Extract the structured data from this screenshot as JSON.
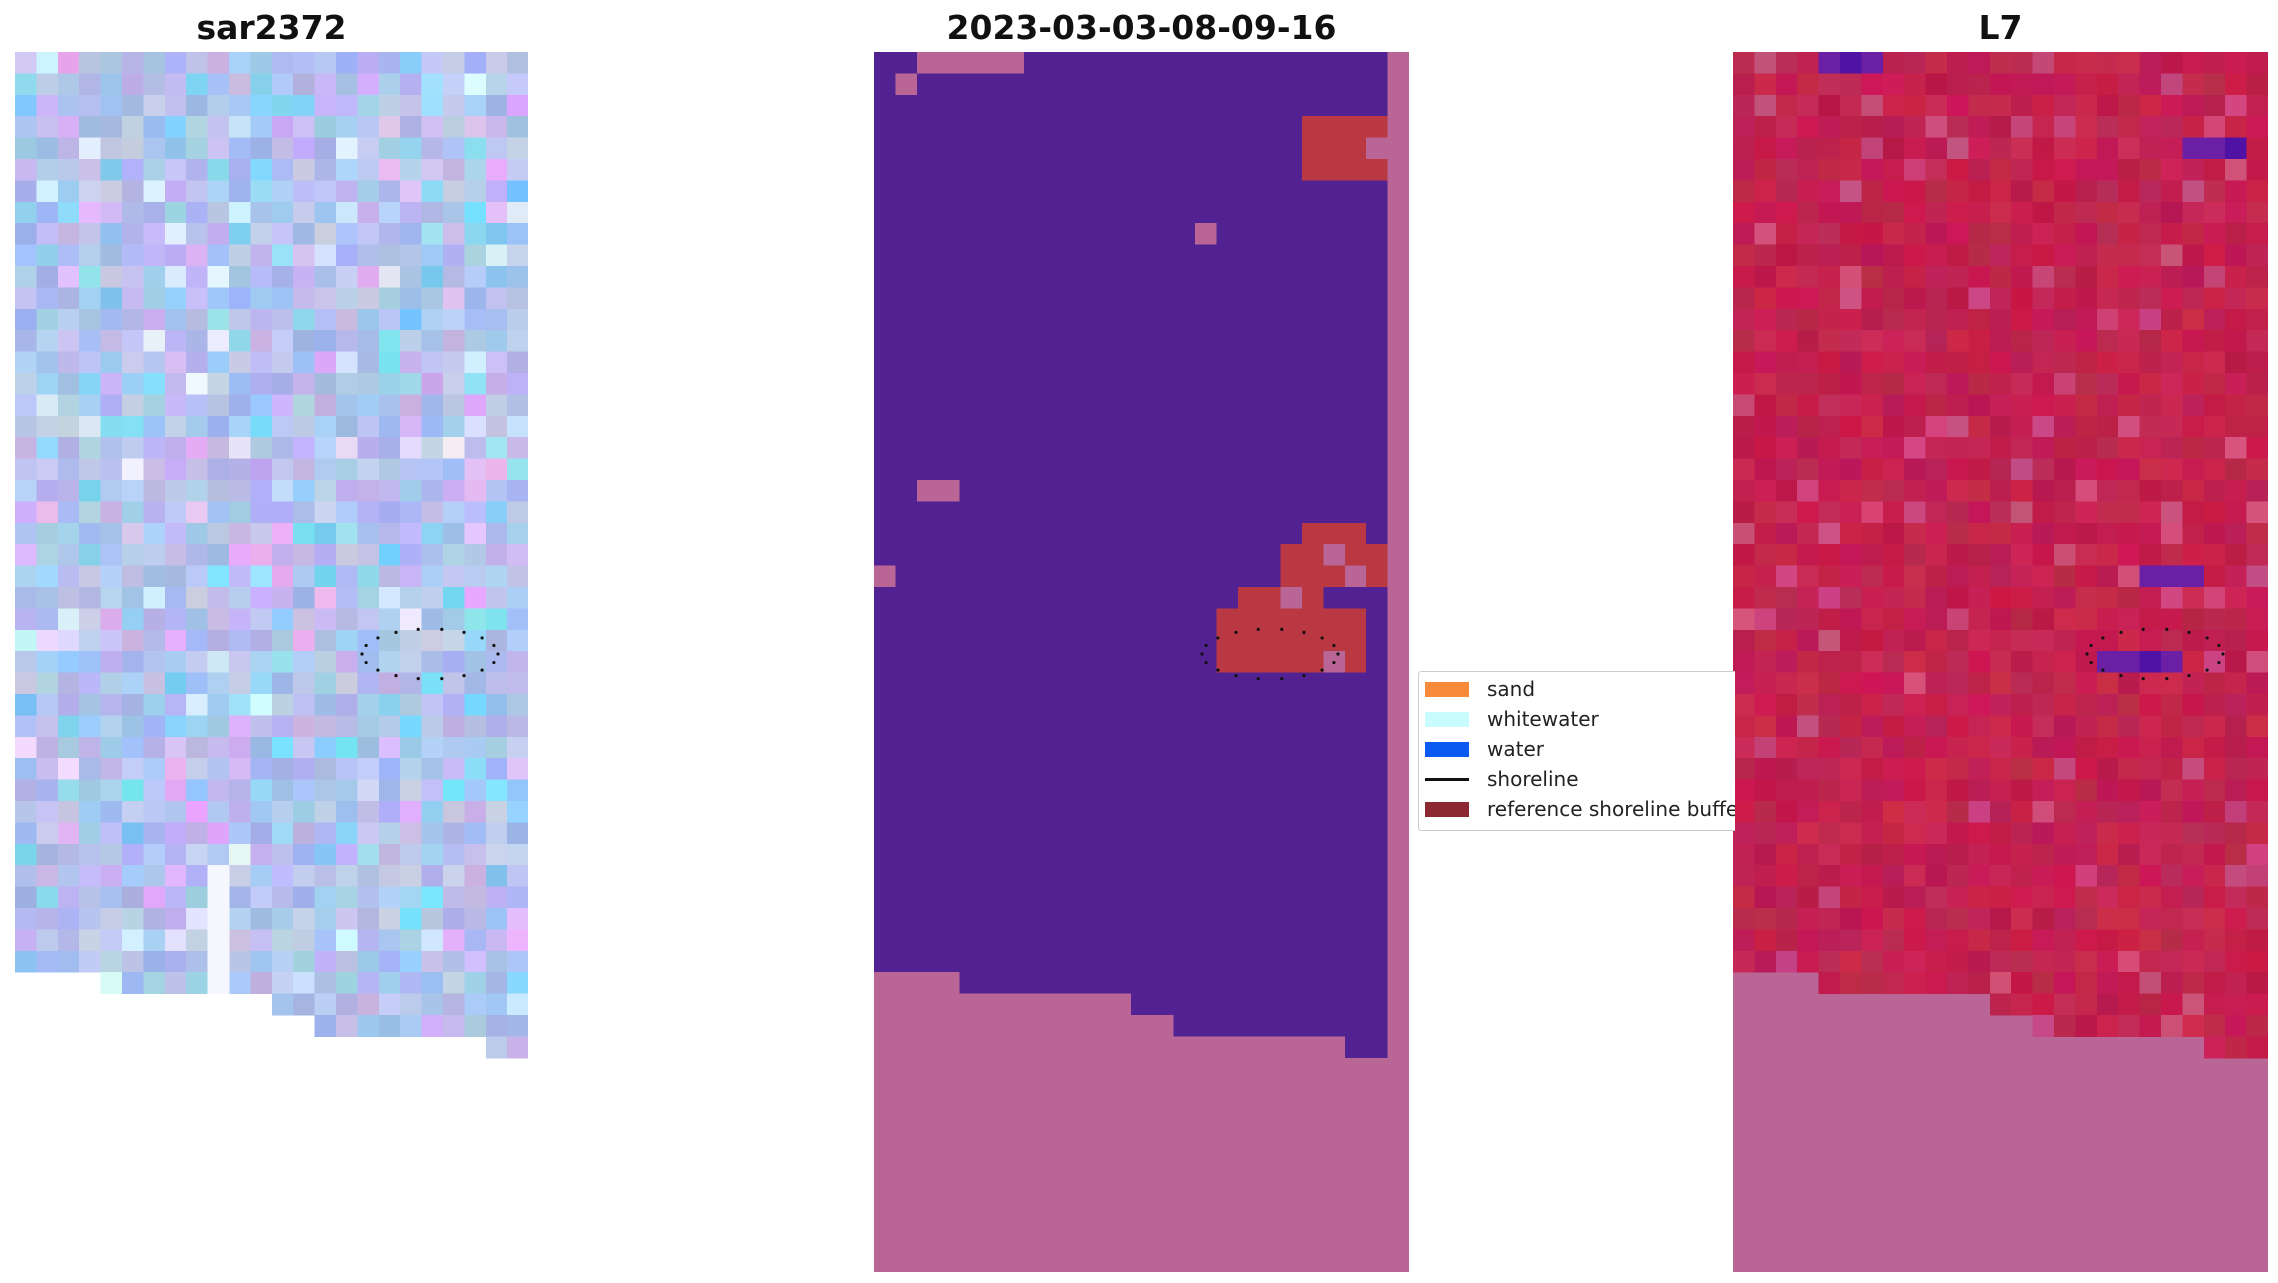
{
  "panels": [
    {
      "id": "left",
      "title": "sar2372"
    },
    {
      "id": "mid",
      "title": "2023-03-03-08-09-16"
    },
    {
      "id": "right",
      "title": "L7"
    }
  ],
  "legend": {
    "items": [
      {
        "label": "sand",
        "kind": "patch",
        "color": "#f98a3c"
      },
      {
        "label": "whitewater",
        "kind": "patch",
        "color": "#c9fdfd"
      },
      {
        "label": "water",
        "kind": "patch",
        "color": "#0a59f0"
      },
      {
        "label": "shoreline",
        "kind": "line",
        "color": "#111111"
      },
      {
        "label": "reference shoreline buffer",
        "kind": "patch",
        "color": "#8b2832"
      }
    ]
  },
  "colors": {
    "nodata_mask": "#b96595",
    "classified_background": "#522293",
    "buffer_fill": "#b93841",
    "sar_base": "#b3c1ec",
    "l7_base": "#c2224f",
    "shoreline_points": "#111111"
  }
}
